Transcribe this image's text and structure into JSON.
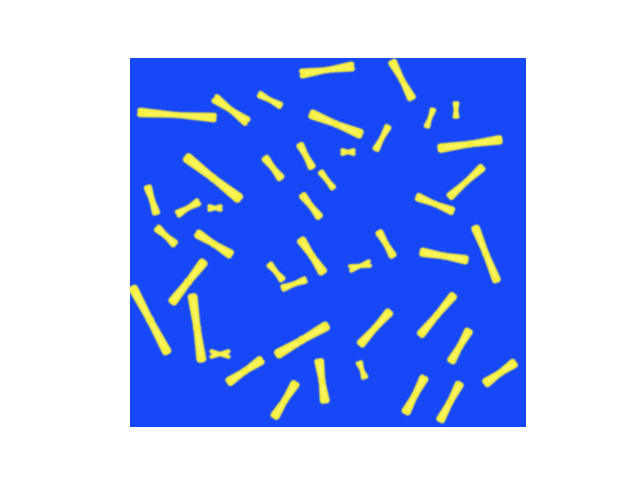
{
  "image": {
    "subject": "karyotype",
    "colors": {
      "page_background": "#ffffff",
      "panel_background": "#1748f7",
      "chromosome_fill": "#f8f040",
      "chromosome_highlight": "#fdfb8a"
    }
  }
}
